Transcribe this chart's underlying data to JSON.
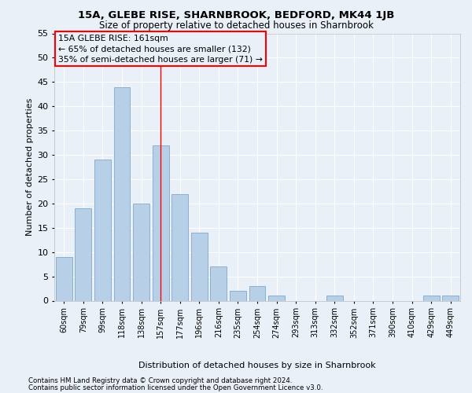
{
  "title": "15A, GLEBE RISE, SHARNBROOK, BEDFORD, MK44 1JB",
  "subtitle": "Size of property relative to detached houses in Sharnbrook",
  "xlabel": "Distribution of detached houses by size in Sharnbrook",
  "ylabel": "Number of detached properties",
  "bar_color": "#b8cfe8",
  "bar_edge_color": "#7fa8cc",
  "categories": [
    "60sqm",
    "79sqm",
    "99sqm",
    "118sqm",
    "138sqm",
    "157sqm",
    "177sqm",
    "196sqm",
    "216sqm",
    "235sqm",
    "254sqm",
    "274sqm",
    "293sqm",
    "313sqm",
    "332sqm",
    "352sqm",
    "371sqm",
    "390sqm",
    "410sqm",
    "429sqm",
    "449sqm"
  ],
  "values": [
    9,
    19,
    29,
    44,
    20,
    32,
    22,
    14,
    7,
    2,
    3,
    1,
    0,
    0,
    1,
    0,
    0,
    0,
    0,
    1,
    1
  ],
  "annotation_label": "15A GLEBE RISE: 161sqm",
  "annotation_line1": "← 65% of detached houses are smaller (132)",
  "annotation_line2": "35% of semi-detached houses are larger (71) →",
  "vline_bin_index": 5,
  "ylim": [
    0,
    55
  ],
  "yticks": [
    0,
    5,
    10,
    15,
    20,
    25,
    30,
    35,
    40,
    45,
    50,
    55
  ],
  "background_color": "#eaf0f8",
  "grid_color": "#ffffff",
  "footnote1": "Contains HM Land Registry data © Crown copyright and database right 2024.",
  "footnote2": "Contains public sector information licensed under the Open Government Licence v3.0."
}
